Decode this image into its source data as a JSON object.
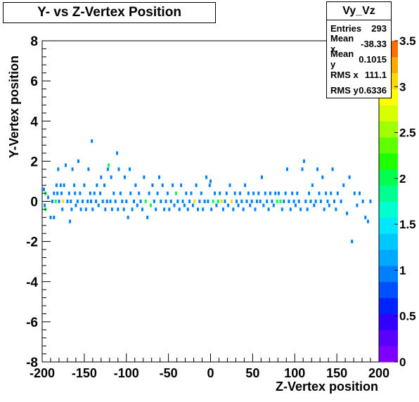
{
  "title": "Y- vs Z-Vertex Position",
  "stats": {
    "name": "Vy_Vz",
    "rows": [
      {
        "label": "Entries",
        "value": "293"
      },
      {
        "label": "Mean x",
        "value": "-38.33"
      },
      {
        "label": "Mean y",
        "value": "0.1015"
      },
      {
        "label": "RMS x",
        "value": "111.1"
      },
      {
        "label": "RMS y",
        "value": "0.6336"
      }
    ]
  },
  "chart_data": {
    "type": "heatmap",
    "xlabel": "Z-Vertex position",
    "ylabel": "Y-Vertex position",
    "xlim": [
      -200,
      200
    ],
    "ylim": [
      -8,
      8
    ],
    "x_ticks": [
      "-200",
      "-150",
      "-100",
      "-50",
      "0",
      "50",
      "100",
      "150",
      "200"
    ],
    "y_ticks": [
      "8",
      "6",
      "4",
      "2",
      "0",
      "-2",
      "-4",
      "-6",
      "-8"
    ],
    "z_ticks": [
      "0",
      "0.5",
      "1",
      "1.5",
      "2",
      "2.5",
      "3",
      "3.5"
    ],
    "zlim": [
      0,
      3.5
    ],
    "palette": [
      "#8000ff",
      "#5a00ff",
      "#3300ff",
      "#0022ff",
      "#0050ff",
      "#0080ff",
      "#00a8ff",
      "#00c8ff",
      "#00e8ff",
      "#00ffd0",
      "#00ff90",
      "#00ff50",
      "#20ff00",
      "#60ff00",
      "#a0ff00",
      "#d8ff00",
      "#ffff00",
      "#ffd800",
      "#ffaa00",
      "#ff7000"
    ],
    "points": [
      {
        "x": -198,
        "y": 0.6,
        "z": 1
      },
      {
        "x": -197,
        "y": -0.2,
        "z": 1
      },
      {
        "x": -196,
        "y": 0.4,
        "z": 2
      },
      {
        "x": -196,
        "y": -0.4,
        "z": 2
      },
      {
        "x": -193,
        "y": 0.2,
        "z": 1
      },
      {
        "x": -190,
        "y": -0.8,
        "z": 1
      },
      {
        "x": -188,
        "y": 0.0,
        "z": 1
      },
      {
        "x": -186,
        "y": 0.4,
        "z": 1
      },
      {
        "x": -186,
        "y": -0.8,
        "z": 1
      },
      {
        "x": -184,
        "y": 0.0,
        "z": 2
      },
      {
        "x": -183,
        "y": 0.8,
        "z": 1
      },
      {
        "x": -182,
        "y": 0.4,
        "z": 1
      },
      {
        "x": -181,
        "y": 1.6,
        "z": 1
      },
      {
        "x": -180,
        "y": 0.0,
        "z": 1
      },
      {
        "x": -178,
        "y": 0.8,
        "z": 1
      },
      {
        "x": -177,
        "y": 0.4,
        "z": 1
      },
      {
        "x": -176,
        "y": -0.4,
        "z": 1
      },
      {
        "x": -175,
        "y": 0.0,
        "z": 3
      },
      {
        "x": -174,
        "y": 0.8,
        "z": 1
      },
      {
        "x": -172,
        "y": 1.8,
        "z": 1
      },
      {
        "x": -170,
        "y": 0.0,
        "z": 1
      },
      {
        "x": -168,
        "y": 0.4,
        "z": 1
      },
      {
        "x": -167,
        "y": -1.0,
        "z": 1
      },
      {
        "x": -166,
        "y": 0.0,
        "z": 1
      },
      {
        "x": -165,
        "y": -0.4,
        "z": 1
      },
      {
        "x": -164,
        "y": 1.6,
        "z": 1
      },
      {
        "x": -162,
        "y": 0.8,
        "z": 1
      },
      {
        "x": -161,
        "y": 0.4,
        "z": 1
      },
      {
        "x": -160,
        "y": -0.2,
        "z": 1
      },
      {
        "x": -158,
        "y": 0.0,
        "z": 1
      },
      {
        "x": -157,
        "y": 2.0,
        "z": 1
      },
      {
        "x": -155,
        "y": 0.4,
        "z": 1
      },
      {
        "x": -154,
        "y": -0.4,
        "z": 1
      },
      {
        "x": -152,
        "y": 0.0,
        "z": 1
      },
      {
        "x": -150,
        "y": 0.8,
        "z": 1
      },
      {
        "x": -148,
        "y": -0.4,
        "z": 1
      },
      {
        "x": -146,
        "y": 0.0,
        "z": 1
      },
      {
        "x": -145,
        "y": 1.6,
        "z": 1
      },
      {
        "x": -143,
        "y": 0.4,
        "z": 1
      },
      {
        "x": -142,
        "y": 0.0,
        "z": 1
      },
      {
        "x": -141,
        "y": 3.0,
        "z": 1
      },
      {
        "x": -140,
        "y": -0.4,
        "z": 1
      },
      {
        "x": -138,
        "y": 0.4,
        "z": 1
      },
      {
        "x": -136,
        "y": 0.0,
        "z": 1
      },
      {
        "x": -135,
        "y": 0.8,
        "z": 1
      },
      {
        "x": -133,
        "y": -0.2,
        "z": 1
      },
      {
        "x": -131,
        "y": 0.4,
        "z": 1
      },
      {
        "x": -130,
        "y": 1.2,
        "z": 1
      },
      {
        "x": -128,
        "y": 0.0,
        "z": 1
      },
      {
        "x": -126,
        "y": 0.8,
        "z": 1
      },
      {
        "x": -125,
        "y": -0.4,
        "z": 1
      },
      {
        "x": -123,
        "y": 0.0,
        "z": 1
      },
      {
        "x": -122,
        "y": 1.6,
        "z": 1
      },
      {
        "x": -121,
        "y": 1.8,
        "z": 2
      },
      {
        "x": -119,
        "y": 0.0,
        "z": 1
      },
      {
        "x": -118,
        "y": 1.2,
        "z": 1
      },
      {
        "x": -117,
        "y": -0.4,
        "z": 1
      },
      {
        "x": -115,
        "y": 0.4,
        "z": 1
      },
      {
        "x": -113,
        "y": 0.0,
        "z": 1
      },
      {
        "x": -111,
        "y": 2.4,
        "z": 1
      },
      {
        "x": -110,
        "y": -0.4,
        "z": 1
      },
      {
        "x": -109,
        "y": 1.6,
        "z": 1
      },
      {
        "x": -107,
        "y": 0.4,
        "z": 1
      },
      {
        "x": -105,
        "y": 0.0,
        "z": 1
      },
      {
        "x": -103,
        "y": -0.4,
        "z": 1
      },
      {
        "x": -102,
        "y": 1.2,
        "z": 1
      },
      {
        "x": -100,
        "y": 0.0,
        "z": 1
      },
      {
        "x": -98,
        "y": -0.8,
        "z": 1
      },
      {
        "x": -96,
        "y": 1.6,
        "z": 1
      },
      {
        "x": -95,
        "y": 0.4,
        "z": 1
      },
      {
        "x": -93,
        "y": -0.4,
        "z": 1
      },
      {
        "x": -91,
        "y": 0.0,
        "z": 1
      },
      {
        "x": -89,
        "y": 0.8,
        "z": 1
      },
      {
        "x": -87,
        "y": -0.2,
        "z": 1
      },
      {
        "x": -85,
        "y": 0.4,
        "z": 1
      },
      {
        "x": -83,
        "y": 0.0,
        "z": 1
      },
      {
        "x": -81,
        "y": -0.4,
        "z": 1
      },
      {
        "x": -79,
        "y": 1.2,
        "z": 1
      },
      {
        "x": -77,
        "y": 0.0,
        "z": 2
      },
      {
        "x": -75,
        "y": -0.8,
        "z": 1
      },
      {
        "x": -73,
        "y": 0.4,
        "z": 1
      },
      {
        "x": -71,
        "y": -0.2,
        "z": 2
      },
      {
        "x": -69,
        "y": 0.8,
        "z": 1
      },
      {
        "x": -67,
        "y": 0.0,
        "z": 1
      },
      {
        "x": -65,
        "y": -0.4,
        "z": 1
      },
      {
        "x": -63,
        "y": 0.4,
        "z": 1
      },
      {
        "x": -61,
        "y": 1.2,
        "z": 1
      },
      {
        "x": -59,
        "y": 0.0,
        "z": 1
      },
      {
        "x": -57,
        "y": 0.8,
        "z": 1
      },
      {
        "x": -55,
        "y": -0.4,
        "z": 1
      },
      {
        "x": -53,
        "y": 0.0,
        "z": 1
      },
      {
        "x": -51,
        "y": 0.4,
        "z": 1
      },
      {
        "x": -49,
        "y": -0.4,
        "z": 1
      },
      {
        "x": -47,
        "y": 0.0,
        "z": 1
      },
      {
        "x": -45,
        "y": 0.8,
        "z": 1
      },
      {
        "x": -43,
        "y": -0.2,
        "z": 1
      },
      {
        "x": -41,
        "y": 0.4,
        "z": 2
      },
      {
        "x": -39,
        "y": 0.0,
        "z": 1
      },
      {
        "x": -37,
        "y": -0.4,
        "z": 1
      },
      {
        "x": -35,
        "y": 0.8,
        "z": 1
      },
      {
        "x": -33,
        "y": 0.0,
        "z": 1
      },
      {
        "x": -31,
        "y": -0.2,
        "z": 1
      },
      {
        "x": -29,
        "y": 0.4,
        "z": 1
      },
      {
        "x": -27,
        "y": -0.4,
        "z": 1
      },
      {
        "x": -25,
        "y": 0.0,
        "z": 1
      },
      {
        "x": -23,
        "y": 0.4,
        "z": 1
      },
      {
        "x": -21,
        "y": -0.2,
        "z": 1
      },
      {
        "x": -19,
        "y": 0.0,
        "z": 3
      },
      {
        "x": -17,
        "y": 0.8,
        "z": 1
      },
      {
        "x": -15,
        "y": -0.4,
        "z": 1
      },
      {
        "x": -13,
        "y": 0.0,
        "z": 1
      },
      {
        "x": -11,
        "y": 0.4,
        "z": 1
      },
      {
        "x": -9,
        "y": -0.4,
        "z": 1
      },
      {
        "x": -7,
        "y": 0.0,
        "z": 1
      },
      {
        "x": -5,
        "y": 1.2,
        "z": 1
      },
      {
        "x": -3,
        "y": 0.0,
        "z": 1
      },
      {
        "x": -1,
        "y": 0.8,
        "z": 1
      },
      {
        "x": 0,
        "y": 1.0,
        "z": 1
      },
      {
        "x": 1,
        "y": -0.4,
        "z": 1
      },
      {
        "x": 3,
        "y": 0.0,
        "z": 2
      },
      {
        "x": 5,
        "y": 0.4,
        "z": 1
      },
      {
        "x": 7,
        "y": -0.2,
        "z": 1
      },
      {
        "x": 9,
        "y": 0.0,
        "z": 2
      },
      {
        "x": 11,
        "y": 0.4,
        "z": 1
      },
      {
        "x": 13,
        "y": 0.0,
        "z": 3
      },
      {
        "x": 15,
        "y": -0.4,
        "z": 1
      },
      {
        "x": 17,
        "y": 0.0,
        "z": 1
      },
      {
        "x": 19,
        "y": 0.4,
        "z": 1
      },
      {
        "x": 21,
        "y": -0.2,
        "z": 1
      },
      {
        "x": 23,
        "y": 0.8,
        "z": 1
      },
      {
        "x": 25,
        "y": 0.0,
        "z": 3
      },
      {
        "x": 27,
        "y": -0.4,
        "z": 1
      },
      {
        "x": 29,
        "y": 0.4,
        "z": 1
      },
      {
        "x": 31,
        "y": 0.0,
        "z": 1
      },
      {
        "x": 33,
        "y": -0.2,
        "z": 1
      },
      {
        "x": 35,
        "y": 0.4,
        "z": 1
      },
      {
        "x": 37,
        "y": 0.0,
        "z": 1
      },
      {
        "x": 39,
        "y": -0.4,
        "z": 1
      },
      {
        "x": 41,
        "y": 0.8,
        "z": 1
      },
      {
        "x": 43,
        "y": 0.0,
        "z": 1
      },
      {
        "x": 45,
        "y": 0.4,
        "z": 1
      },
      {
        "x": 47,
        "y": -0.2,
        "z": 1
      },
      {
        "x": 49,
        "y": 0.0,
        "z": 1
      },
      {
        "x": 51,
        "y": 0.4,
        "z": 1
      },
      {
        "x": 53,
        "y": -0.4,
        "z": 1
      },
      {
        "x": 55,
        "y": 0.0,
        "z": 1
      },
      {
        "x": 57,
        "y": 0.4,
        "z": 1
      },
      {
        "x": 59,
        "y": 0.0,
        "z": 1
      },
      {
        "x": 61,
        "y": 1.2,
        "z": 1
      },
      {
        "x": 63,
        "y": -0.2,
        "z": 1
      },
      {
        "x": 65,
        "y": 0.4,
        "z": 1
      },
      {
        "x": 67,
        "y": 0.0,
        "z": 1
      },
      {
        "x": 69,
        "y": -0.4,
        "z": 1
      },
      {
        "x": 71,
        "y": 0.4,
        "z": 1
      },
      {
        "x": 73,
        "y": 0.0,
        "z": 1
      },
      {
        "x": 75,
        "y": -0.2,
        "z": 1
      },
      {
        "x": 77,
        "y": 0.4,
        "z": 1
      },
      {
        "x": 79,
        "y": 0.0,
        "z": 2
      },
      {
        "x": 81,
        "y": 0.4,
        "z": 1
      },
      {
        "x": 83,
        "y": 0.0,
        "z": 2
      },
      {
        "x": 85,
        "y": -0.4,
        "z": 1
      },
      {
        "x": 87,
        "y": 0.0,
        "z": 1
      },
      {
        "x": 89,
        "y": 0.4,
        "z": 1
      },
      {
        "x": 91,
        "y": 1.6,
        "z": 1
      },
      {
        "x": 93,
        "y": 0.0,
        "z": 1
      },
      {
        "x": 95,
        "y": -0.4,
        "z": 1
      },
      {
        "x": 97,
        "y": 0.4,
        "z": 1
      },
      {
        "x": 99,
        "y": 0.0,
        "z": 1
      },
      {
        "x": 101,
        "y": -0.2,
        "z": 1
      },
      {
        "x": 103,
        "y": 0.4,
        "z": 1
      },
      {
        "x": 105,
        "y": 0.0,
        "z": 1
      },
      {
        "x": 107,
        "y": -0.4,
        "z": 1
      },
      {
        "x": 109,
        "y": 1.6,
        "z": 1
      },
      {
        "x": 111,
        "y": 2.0,
        "z": 1
      },
      {
        "x": 113,
        "y": 0.0,
        "z": 1
      },
      {
        "x": 115,
        "y": -0.4,
        "z": 1
      },
      {
        "x": 117,
        "y": 0.4,
        "z": 1
      },
      {
        "x": 119,
        "y": 0.0,
        "z": 1
      },
      {
        "x": 121,
        "y": 0.8,
        "z": 1
      },
      {
        "x": 123,
        "y": -0.2,
        "z": 1
      },
      {
        "x": 125,
        "y": 0.0,
        "z": 1
      },
      {
        "x": 127,
        "y": 1.6,
        "z": 1
      },
      {
        "x": 129,
        "y": 0.4,
        "z": 1
      },
      {
        "x": 131,
        "y": 0.0,
        "z": 1
      },
      {
        "x": 133,
        "y": 1.2,
        "z": 1
      },
      {
        "x": 135,
        "y": -0.4,
        "z": 1
      },
      {
        "x": 137,
        "y": 0.4,
        "z": 1
      },
      {
        "x": 139,
        "y": 0.0,
        "z": 1
      },
      {
        "x": 141,
        "y": -0.2,
        "z": 1
      },
      {
        "x": 143,
        "y": 0.4,
        "z": 1
      },
      {
        "x": 145,
        "y": 1.6,
        "z": 1
      },
      {
        "x": 147,
        "y": 0.0,
        "z": 1
      },
      {
        "x": 149,
        "y": -0.4,
        "z": 1
      },
      {
        "x": 151,
        "y": 0.4,
        "z": 1
      },
      {
        "x": 155,
        "y": 0.0,
        "z": 1
      },
      {
        "x": 158,
        "y": 0.8,
        "z": 1
      },
      {
        "x": 162,
        "y": -0.6,
        "z": 1
      },
      {
        "x": 165,
        "y": 1.2,
        "z": 1
      },
      {
        "x": 168,
        "y": -2.0,
        "z": 1
      },
      {
        "x": 171,
        "y": 0.4,
        "z": 1
      },
      {
        "x": 174,
        "y": -0.2,
        "z": 1
      },
      {
        "x": 177,
        "y": 0.4,
        "z": 1
      },
      {
        "x": 181,
        "y": 0.0,
        "z": 1
      },
      {
        "x": 184,
        "y": -0.8,
        "z": 1
      },
      {
        "x": 187,
        "y": -1.0,
        "z": 1
      },
      {
        "x": 190,
        "y": 0.0,
        "z": 1
      }
    ]
  }
}
